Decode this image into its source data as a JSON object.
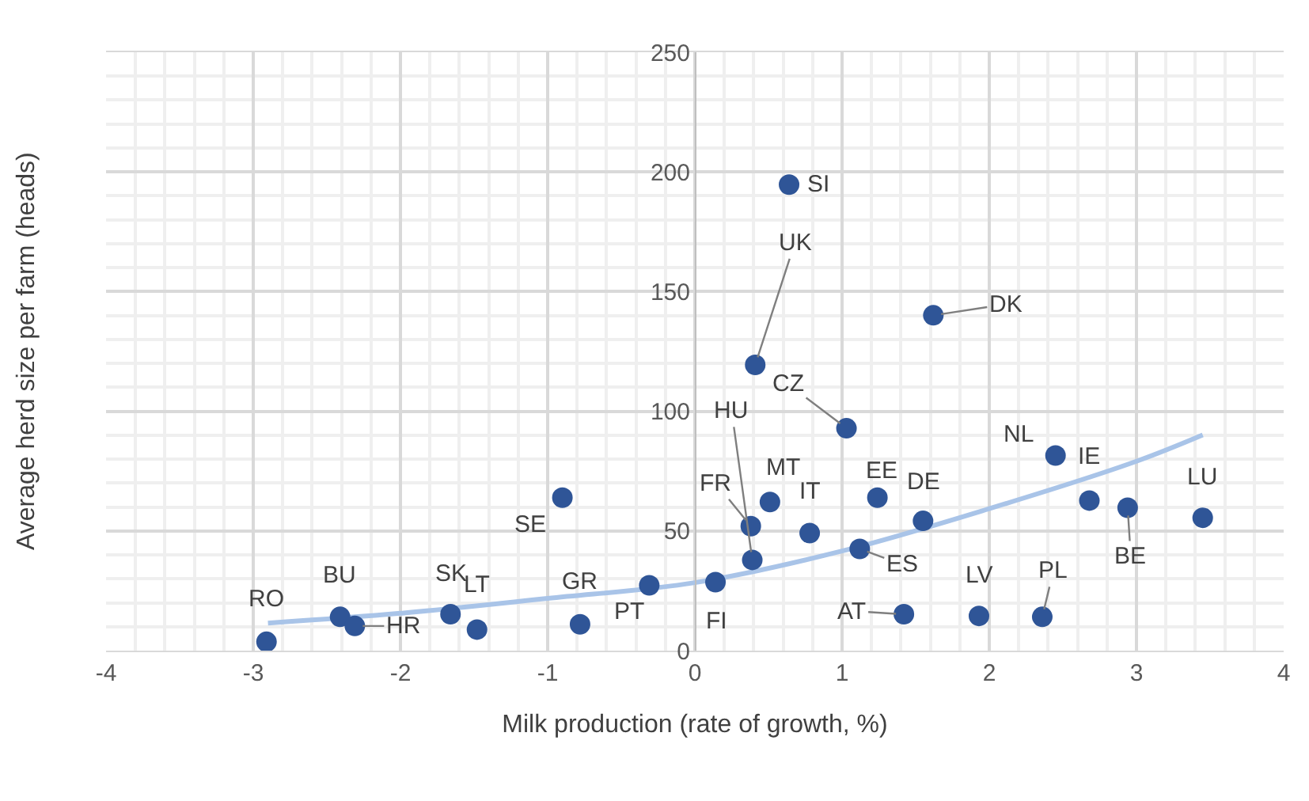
{
  "chart_data": {
    "type": "scatter",
    "xlabel": "Milk production (rate of growth, %)",
    "ylabel": "Average herd size per farm (heads)",
    "xlim": [
      -4,
      4
    ],
    "xticks": [
      -4,
      -3,
      -2,
      -1,
      0,
      1,
      2,
      3,
      4
    ],
    "ylim": [
      0,
      250
    ],
    "yticks": [
      0,
      50,
      100,
      150,
      200,
      250
    ],
    "grid": true,
    "marker": "circle",
    "series": [
      {
        "color": "#2f5597",
        "x": [
          -2.91,
          -2.41,
          -2.31,
          -1.66,
          -1.48,
          -0.9,
          -0.78,
          -0.31,
          0.14,
          0.64,
          0.41,
          1.62,
          1.03,
          2.45,
          2.68,
          2.94,
          3.45,
          0.51,
          0.38,
          0.39,
          0.78,
          1.24,
          1.55,
          1.12,
          1.42,
          1.93,
          2.36
        ],
        "values": [
          3.7,
          14.1,
          10.3,
          15.2,
          8.8,
          63.9,
          11,
          27.3,
          28.6,
          194.7,
          119.4,
          140.1,
          92.9,
          81.5,
          62.7,
          59.7,
          55.5,
          62.1,
          52,
          37.9,
          49.1,
          63.9,
          54.2,
          42.5,
          15.2,
          14.5,
          14.1
        ]
      },
      {
        "type": "line",
        "color": "#a9c4e8",
        "line_style": "solid",
        "marker": "none",
        "x": [
          -2.9,
          -2,
          -1,
          0,
          1,
          2,
          3,
          3.45
        ],
        "values": [
          11.5,
          15.6,
          21.8,
          28.4,
          41.6,
          59.3,
          79.1,
          90.1
        ]
      }
    ],
    "annotations": [
      {
        "text": "RO",
        "x": -2.91,
        "y": 3.7
      },
      {
        "text": "BU",
        "x": -2.41,
        "y": 14.1
      },
      {
        "text": "HR",
        "x": -2.31,
        "y": 10.3
      },
      {
        "text": "SK",
        "x": -1.66,
        "y": 15.2
      },
      {
        "text": "LT",
        "x": -1.48,
        "y": 8.8
      },
      {
        "text": "SE",
        "x": -0.9,
        "y": 63.9
      },
      {
        "text": "GR",
        "x": -0.78,
        "y": 11
      },
      {
        "text": "PT",
        "x": -0.31,
        "y": 27.3
      },
      {
        "text": "FI",
        "x": 0.14,
        "y": 28.6
      },
      {
        "text": "SI",
        "x": 0.64,
        "y": 194.7
      },
      {
        "text": "UK",
        "x": 0.41,
        "y": 119.4
      },
      {
        "text": "DK",
        "x": 1.62,
        "y": 140.1
      },
      {
        "text": "CZ",
        "x": 1.03,
        "y": 92.9
      },
      {
        "text": "NL",
        "x": 2.45,
        "y": 81.5
      },
      {
        "text": "IE",
        "x": 2.68,
        "y": 62.7
      },
      {
        "text": "BE",
        "x": 2.94,
        "y": 59.7
      },
      {
        "text": "LU",
        "x": 3.45,
        "y": 55.5
      },
      {
        "text": "MT",
        "x": 0.51,
        "y": 62.1
      },
      {
        "text": "FR",
        "x": 0.38,
        "y": 52
      },
      {
        "text": "HU",
        "x": 0.39,
        "y": 37.9
      },
      {
        "text": "IT",
        "x": 0.78,
        "y": 49.1
      },
      {
        "text": "EE",
        "x": 1.24,
        "y": 63.9
      },
      {
        "text": "DE",
        "x": 1.55,
        "y": 54.2
      },
      {
        "text": "ES",
        "x": 1.12,
        "y": 42.5
      },
      {
        "text": "AT",
        "x": 1.42,
        "y": 15.2
      },
      {
        "text": "LV",
        "x": 1.93,
        "y": 14.5
      },
      {
        "text": "PL",
        "x": 2.36,
        "y": 14.1
      }
    ]
  }
}
